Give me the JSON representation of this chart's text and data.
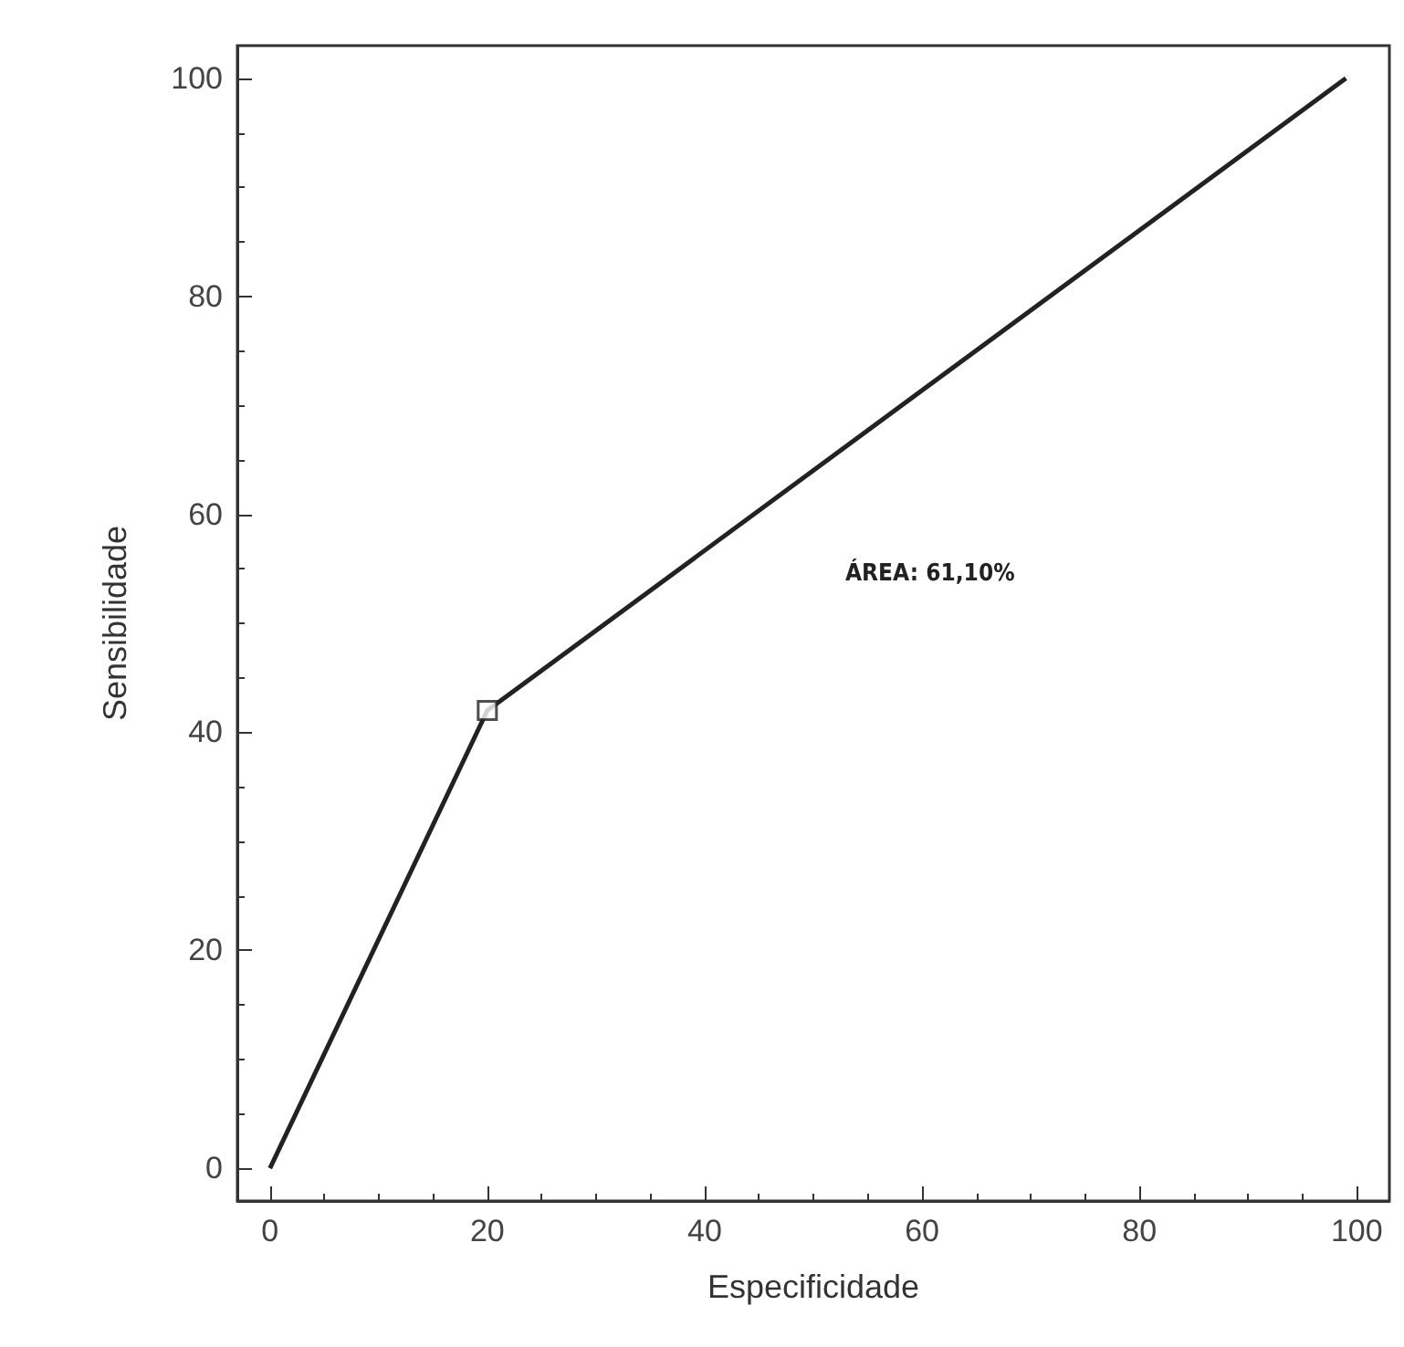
{
  "chart_data": {
    "type": "line",
    "xlabel": "Especificidade",
    "ylabel": "Sensibilidade",
    "xlim": [
      -3,
      103
    ],
    "ylim": [
      -3,
      103
    ],
    "xticks": [
      0,
      20,
      40,
      60,
      80,
      100
    ],
    "yticks": [
      0,
      20,
      40,
      60,
      80,
      100
    ],
    "grid": false,
    "series": [
      {
        "color": "#222222",
        "x": [
          0,
          20,
          99
        ],
        "values": [
          0,
          42,
          100
        ],
        "marker": "none",
        "line_style": "solid"
      },
      {
        "type": "scatter",
        "color": "#222222",
        "x": [
          20
        ],
        "values": [
          42
        ],
        "marker": "square"
      }
    ],
    "annotations": [
      "ÁREA: 61,10%"
    ]
  }
}
